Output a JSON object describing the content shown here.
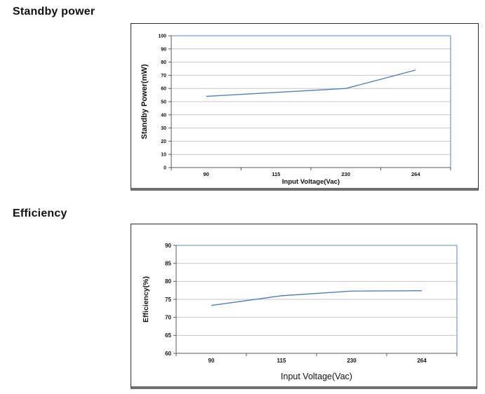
{
  "page": {
    "background": "#ffffff",
    "sections": [
      {
        "heading": "Standby power"
      },
      {
        "heading": "Efficiency"
      }
    ]
  },
  "chart_data": [
    {
      "type": "line",
      "title": "Standby power",
      "categories": [
        "90",
        "115",
        "230",
        "264"
      ],
      "series": [
        {
          "name": "Standby Power",
          "values": [
            54,
            57,
            60,
            74
          ]
        }
      ],
      "xlabel": "Input Voltage(Vac)",
      "ylabel": "Standby Power(mW)",
      "ylim": [
        0,
        100
      ],
      "ytick_step": 10,
      "grid": true,
      "legend": "none"
    },
    {
      "type": "line",
      "title": "Efficiency",
      "categories": [
        "90",
        "115",
        "230",
        "264"
      ],
      "series": [
        {
          "name": "Efficiency",
          "values": [
            73.3,
            76,
            77.3,
            77.4
          ]
        }
      ],
      "xlabel": "Input Voltage(Vac)",
      "ylabel": "Efficiency(%)",
      "ylim": [
        60,
        90
      ],
      "ytick_step": 5,
      "grid": true,
      "legend": "none"
    }
  ],
  "colors": {
    "line": "#4f81bd",
    "gridline": "#c6c6c6",
    "axis": "#595959",
    "plot_border": "#7da0c8",
    "text": "#111111"
  }
}
